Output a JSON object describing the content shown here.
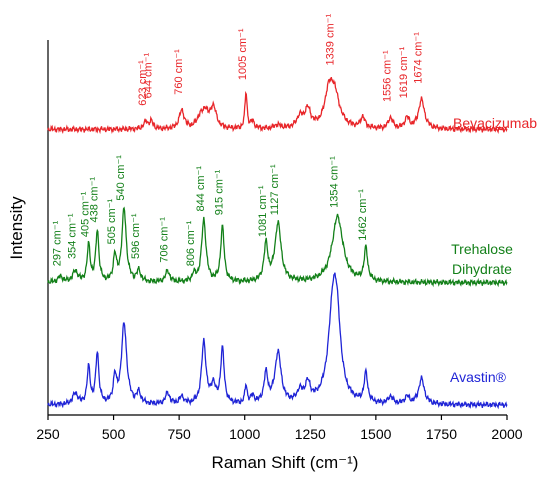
{
  "chart_data": {
    "type": "line",
    "xlabel": "Raman Shift (cm⁻¹)",
    "ylabel": "Intensity",
    "xlim": [
      250,
      2000
    ],
    "x_ticks": [
      250,
      500,
      750,
      1000,
      1250,
      1500,
      1750,
      2000
    ],
    "x_tick_labels": [
      "250",
      "500",
      "750",
      "1000",
      "1250",
      "1500",
      "1750",
      "2000"
    ],
    "y_ticks_shown": false,
    "grid": false,
    "legend": "none",
    "series": [
      {
        "name": "Bevacizumab",
        "color": "#e8262a",
        "baseline": 0.755,
        "peaks": [
          [
            623,
            0.02,
            10
          ],
          [
            644,
            0.02,
            8
          ],
          [
            760,
            0.05,
            12
          ],
          [
            830,
            0.03,
            15
          ],
          [
            850,
            0.04,
            12
          ],
          [
            880,
            0.06,
            14
          ],
          [
            1005,
            0.1,
            5
          ],
          [
            1030,
            0.02,
            8
          ],
          [
            1125,
            0.01,
            15
          ],
          [
            1210,
            0.03,
            14
          ],
          [
            1240,
            0.05,
            14
          ],
          [
            1339,
            0.11,
            25
          ],
          [
            1318,
            0.06,
            15
          ],
          [
            1450,
            0.03,
            10
          ],
          [
            1556,
            0.03,
            10
          ],
          [
            1619,
            0.03,
            10
          ],
          [
            1674,
            0.08,
            14
          ]
        ],
        "labels": [
          {
            "x": 623,
            "text": "623 cm⁻¹",
            "y": 0.82
          },
          {
            "x": 644,
            "text": "644 cm⁻¹",
            "y": 0.84
          },
          {
            "x": 760,
            "text": "760 cm⁻¹",
            "y": 0.85
          },
          {
            "x": 1005,
            "text": "1005 cm⁻¹",
            "y": 0.89
          },
          {
            "x": 1339,
            "text": "1339 cm⁻¹",
            "y": 0.93
          },
          {
            "x": 1556,
            "text": "1556 cm⁻¹",
            "y": 0.83
          },
          {
            "x": 1619,
            "text": "1619 cm⁻¹",
            "y": 0.84
          },
          {
            "x": 1674,
            "text": "1674 cm⁻¹",
            "y": 0.88
          }
        ],
        "series_label": "Bevacizumab"
      },
      {
        "name": "Trehalose Dihydrate",
        "color": "#138019",
        "baseline": 0.335,
        "peaks": [
          [
            297,
            0.015,
            12
          ],
          [
            354,
            0.03,
            12
          ],
          [
            405,
            0.1,
            7
          ],
          [
            438,
            0.14,
            7
          ],
          [
            505,
            0.07,
            7
          ],
          [
            540,
            0.2,
            10
          ],
          [
            596,
            0.03,
            9
          ],
          [
            706,
            0.03,
            10
          ],
          [
            806,
            0.02,
            8
          ],
          [
            844,
            0.17,
            10
          ],
          [
            915,
            0.15,
            8
          ],
          [
            1081,
            0.1,
            9
          ],
          [
            1127,
            0.16,
            14
          ],
          [
            1354,
            0.18,
            25
          ],
          [
            1462,
            0.09,
            8
          ]
        ],
        "labels": [
          {
            "x": 297,
            "text": "297 cm⁻¹",
            "y": 0.38
          },
          {
            "x": 354,
            "text": "354 cm⁻¹",
            "y": 0.4
          },
          {
            "x": 405,
            "text": "405 cm⁻¹",
            "y": 0.46
          },
          {
            "x": 438,
            "text": "438 cm⁻¹",
            "y": 0.5
          },
          {
            "x": 505,
            "text": "505 cm⁻¹",
            "y": 0.44
          },
          {
            "x": 540,
            "text": "540 cm⁻¹",
            "y": 0.56
          },
          {
            "x": 596,
            "text": "596 cm⁻¹",
            "y": 0.4
          },
          {
            "x": 706,
            "text": "706 cm⁻¹",
            "y": 0.39
          },
          {
            "x": 806,
            "text": "806 cm⁻¹",
            "y": 0.38
          },
          {
            "x": 844,
            "text": "844 cm⁻¹",
            "y": 0.53
          },
          {
            "x": 915,
            "text": "915 cm⁻¹",
            "y": 0.52
          },
          {
            "x": 1081,
            "text": "1081 cm⁻¹",
            "y": 0.46
          },
          {
            "x": 1127,
            "text": "1127 cm⁻¹",
            "y": 0.52
          },
          {
            "x": 1354,
            "text": "1354 cm⁻¹",
            "y": 0.54
          },
          {
            "x": 1462,
            "text": "1462 cm⁻¹",
            "y": 0.45
          }
        ],
        "series_label": [
          "Trehalose",
          "Dihydrate"
        ]
      },
      {
        "name": "Avastin®",
        "color": "#1f24d6",
        "baseline": 0.0,
        "peaks": [
          [
            354,
            0.03,
            12
          ],
          [
            405,
            0.1,
            7
          ],
          [
            438,
            0.14,
            7
          ],
          [
            505,
            0.07,
            7
          ],
          [
            540,
            0.22,
            12
          ],
          [
            596,
            0.03,
            9
          ],
          [
            706,
            0.03,
            10
          ],
          [
            760,
            0.02,
            10
          ],
          [
            844,
            0.17,
            10
          ],
          [
            880,
            0.05,
            10
          ],
          [
            915,
            0.15,
            8
          ],
          [
            1005,
            0.05,
            5
          ],
          [
            1030,
            0.02,
            8
          ],
          [
            1081,
            0.08,
            9
          ],
          [
            1127,
            0.14,
            14
          ],
          [
            1210,
            0.03,
            12
          ],
          [
            1240,
            0.05,
            12
          ],
          [
            1339,
            0.3,
            22
          ],
          [
            1354,
            0.1,
            15
          ],
          [
            1462,
            0.08,
            8
          ],
          [
            1556,
            0.02,
            10
          ],
          [
            1619,
            0.02,
            10
          ],
          [
            1674,
            0.07,
            13
          ]
        ],
        "labels": [],
        "series_label": "Avastin®"
      }
    ]
  }
}
